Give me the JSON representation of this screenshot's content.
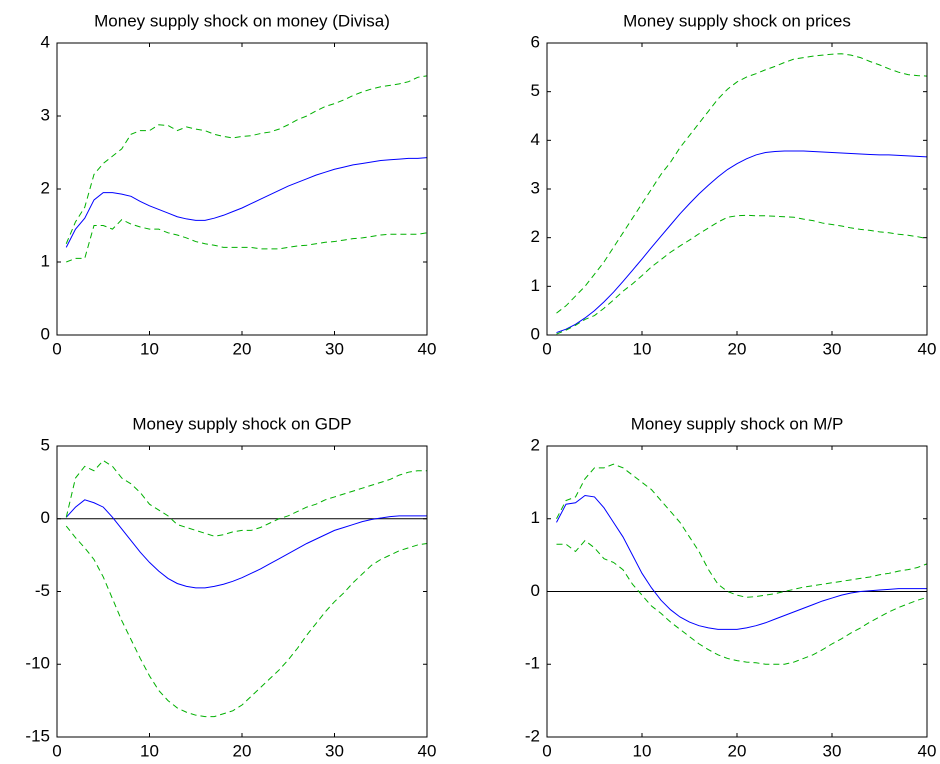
{
  "chart_data": [
    {
      "type": "line",
      "title": "Money supply shock on money (Divisa)",
      "x": [
        1,
        2,
        3,
        4,
        5,
        6,
        7,
        8,
        9,
        10,
        11,
        12,
        13,
        14,
        15,
        16,
        17,
        18,
        19,
        20,
        21,
        22,
        23,
        24,
        25,
        26,
        27,
        28,
        29,
        30,
        31,
        32,
        33,
        34,
        35,
        36,
        37,
        38,
        39,
        40
      ],
      "xlim": [
        0,
        40
      ],
      "xticks": [
        0,
        10,
        20,
        30,
        40
      ],
      "ylim": [
        0,
        4
      ],
      "yticks": [
        0,
        1,
        2,
        3,
        4
      ],
      "series": [
        {
          "color": "#0000ff",
          "dash": "solid",
          "values": [
            1.2,
            1.45,
            1.6,
            1.85,
            1.95,
            1.95,
            1.93,
            1.9,
            1.83,
            1.77,
            1.72,
            1.67,
            1.62,
            1.59,
            1.57,
            1.57,
            1.6,
            1.64,
            1.69,
            1.74,
            1.8,
            1.86,
            1.92,
            1.98,
            2.04,
            2.09,
            2.14,
            2.19,
            2.23,
            2.27,
            2.3,
            2.33,
            2.35,
            2.37,
            2.39,
            2.4,
            2.41,
            2.42,
            2.42,
            2.43
          ]
        },
        {
          "color": "#00b000",
          "dash": "dashed",
          "values": [
            1.25,
            1.55,
            1.75,
            2.2,
            2.35,
            2.45,
            2.55,
            2.75,
            2.8,
            2.8,
            2.88,
            2.87,
            2.8,
            2.85,
            2.82,
            2.8,
            2.75,
            2.72,
            2.7,
            2.72,
            2.73,
            2.76,
            2.78,
            2.82,
            2.88,
            2.95,
            3.0,
            3.07,
            3.13,
            3.17,
            3.22,
            3.28,
            3.33,
            3.37,
            3.4,
            3.42,
            3.44,
            3.47,
            3.53,
            3.55
          ]
        },
        {
          "color": "#00b000",
          "dash": "dashed",
          "values": [
            1.0,
            1.05,
            1.05,
            1.5,
            1.5,
            1.45,
            1.58,
            1.52,
            1.48,
            1.45,
            1.45,
            1.4,
            1.37,
            1.33,
            1.28,
            1.25,
            1.23,
            1.2,
            1.2,
            1.2,
            1.2,
            1.18,
            1.18,
            1.18,
            1.2,
            1.22,
            1.23,
            1.25,
            1.27,
            1.28,
            1.3,
            1.32,
            1.33,
            1.35,
            1.37,
            1.38,
            1.38,
            1.38,
            1.38,
            1.4
          ]
        }
      ]
    },
    {
      "type": "line",
      "title": "Money supply shock on prices",
      "x": [
        1,
        2,
        3,
        4,
        5,
        6,
        7,
        8,
        9,
        10,
        11,
        12,
        13,
        14,
        15,
        16,
        17,
        18,
        19,
        20,
        21,
        22,
        23,
        24,
        25,
        26,
        27,
        28,
        29,
        30,
        31,
        32,
        33,
        34,
        35,
        36,
        37,
        38,
        39,
        40
      ],
      "xlim": [
        0,
        40
      ],
      "xticks": [
        0,
        10,
        20,
        30,
        40
      ],
      "ylim": [
        0,
        6
      ],
      "yticks": [
        0,
        1,
        2,
        3,
        4,
        5,
        6
      ],
      "series": [
        {
          "color": "#0000ff",
          "dash": "solid",
          "values": [
            0.05,
            0.12,
            0.22,
            0.35,
            0.5,
            0.68,
            0.88,
            1.1,
            1.33,
            1.56,
            1.8,
            2.03,
            2.26,
            2.49,
            2.7,
            2.9,
            3.08,
            3.25,
            3.4,
            3.52,
            3.62,
            3.7,
            3.75,
            3.77,
            3.78,
            3.78,
            3.78,
            3.77,
            3.76,
            3.75,
            3.74,
            3.73,
            3.72,
            3.71,
            3.7,
            3.7,
            3.69,
            3.68,
            3.67,
            3.66
          ]
        },
        {
          "color": "#00b000",
          "dash": "dashed",
          "values": [
            0.45,
            0.6,
            0.8,
            1.0,
            1.25,
            1.5,
            1.8,
            2.1,
            2.4,
            2.7,
            3.0,
            3.3,
            3.55,
            3.85,
            4.1,
            4.35,
            4.6,
            4.85,
            5.05,
            5.2,
            5.3,
            5.37,
            5.45,
            5.52,
            5.6,
            5.67,
            5.7,
            5.73,
            5.75,
            5.77,
            5.78,
            5.75,
            5.7,
            5.62,
            5.55,
            5.47,
            5.4,
            5.35,
            5.33,
            5.32
          ]
        },
        {
          "color": "#00b000",
          "dash": "dashed",
          "values": [
            0.02,
            0.1,
            0.2,
            0.32,
            0.4,
            0.55,
            0.72,
            0.9,
            1.05,
            1.22,
            1.4,
            1.55,
            1.7,
            1.83,
            1.95,
            2.08,
            2.2,
            2.32,
            2.42,
            2.45,
            2.46,
            2.45,
            2.45,
            2.44,
            2.43,
            2.42,
            2.38,
            2.35,
            2.3,
            2.27,
            2.24,
            2.2,
            2.17,
            2.15,
            2.12,
            2.1,
            2.07,
            2.05,
            2.02,
            1.98
          ]
        }
      ]
    },
    {
      "type": "line",
      "title": "Money supply shock on GDP",
      "x": [
        1,
        2,
        3,
        4,
        5,
        6,
        7,
        8,
        9,
        10,
        11,
        12,
        13,
        14,
        15,
        16,
        17,
        18,
        19,
        20,
        21,
        22,
        23,
        24,
        25,
        26,
        27,
        28,
        29,
        30,
        31,
        32,
        33,
        34,
        35,
        36,
        37,
        38,
        39,
        40
      ],
      "xlim": [
        0,
        40
      ],
      "xticks": [
        0,
        10,
        20,
        30,
        40
      ],
      "ylim": [
        -15,
        5
      ],
      "yticks": [
        -15,
        -10,
        -5,
        0,
        5
      ],
      "hline": 0,
      "series": [
        {
          "color": "#0000ff",
          "dash": "solid",
          "values": [
            0.1,
            0.8,
            1.3,
            1.1,
            0.8,
            0.1,
            -0.7,
            -1.5,
            -2.3,
            -3.0,
            -3.6,
            -4.1,
            -4.45,
            -4.65,
            -4.75,
            -4.75,
            -4.65,
            -4.5,
            -4.3,
            -4.05,
            -3.75,
            -3.45,
            -3.1,
            -2.75,
            -2.4,
            -2.05,
            -1.7,
            -1.4,
            -1.1,
            -0.8,
            -0.6,
            -0.4,
            -0.2,
            -0.05,
            0.05,
            0.15,
            0.2,
            0.2,
            0.2,
            0.2
          ]
        },
        {
          "color": "#00b000",
          "dash": "dashed",
          "values": [
            0.1,
            2.8,
            3.6,
            3.3,
            4.0,
            3.6,
            2.8,
            2.4,
            1.8,
            1.0,
            0.6,
            0.2,
            -0.4,
            -0.6,
            -0.8,
            -1.0,
            -1.2,
            -1.1,
            -0.9,
            -0.8,
            -0.8,
            -0.6,
            -0.3,
            0.0,
            0.2,
            0.5,
            0.8,
            1.0,
            1.3,
            1.5,
            1.7,
            1.9,
            2.1,
            2.3,
            2.5,
            2.7,
            3.0,
            3.2,
            3.3,
            3.3
          ]
        },
        {
          "color": "#00b000",
          "dash": "dashed",
          "values": [
            -0.5,
            -1.3,
            -2.0,
            -2.8,
            -4.0,
            -5.5,
            -7.0,
            -8.3,
            -9.6,
            -10.8,
            -11.8,
            -12.5,
            -13.0,
            -13.3,
            -13.5,
            -13.6,
            -13.6,
            -13.4,
            -13.2,
            -12.8,
            -12.2,
            -11.6,
            -11.0,
            -10.4,
            -9.7,
            -8.9,
            -8.0,
            -7.2,
            -6.4,
            -5.7,
            -5.1,
            -4.4,
            -3.8,
            -3.2,
            -2.8,
            -2.5,
            -2.2,
            -2.0,
            -1.8,
            -1.7
          ]
        }
      ]
    },
    {
      "type": "line",
      "title": "Money supply shock on M/P",
      "x": [
        1,
        2,
        3,
        4,
        5,
        6,
        7,
        8,
        9,
        10,
        11,
        12,
        13,
        14,
        15,
        16,
        17,
        18,
        19,
        20,
        21,
        22,
        23,
        24,
        25,
        26,
        27,
        28,
        29,
        30,
        31,
        32,
        33,
        34,
        35,
        36,
        37,
        38,
        39,
        40
      ],
      "xlim": [
        0,
        40
      ],
      "xticks": [
        0,
        10,
        20,
        30,
        40
      ],
      "ylim": [
        -2,
        2
      ],
      "yticks": [
        -2,
        -1,
        0,
        1,
        2
      ],
      "hline": 0,
      "series": [
        {
          "color": "#0000ff",
          "dash": "solid",
          "values": [
            0.95,
            1.2,
            1.22,
            1.32,
            1.3,
            1.15,
            0.95,
            0.75,
            0.5,
            0.25,
            0.05,
            -0.12,
            -0.25,
            -0.35,
            -0.42,
            -0.47,
            -0.5,
            -0.52,
            -0.52,
            -0.52,
            -0.5,
            -0.47,
            -0.43,
            -0.38,
            -0.33,
            -0.28,
            -0.23,
            -0.18,
            -0.13,
            -0.09,
            -0.05,
            -0.02,
            0.0,
            0.01,
            0.02,
            0.03,
            0.04,
            0.04,
            0.04,
            0.04
          ]
        },
        {
          "color": "#00b000",
          "dash": "dashed",
          "values": [
            1.0,
            1.25,
            1.3,
            1.55,
            1.7,
            1.7,
            1.75,
            1.7,
            1.6,
            1.5,
            1.4,
            1.25,
            1.1,
            0.95,
            0.75,
            0.55,
            0.3,
            0.1,
            0.0,
            -0.05,
            -0.08,
            -0.07,
            -0.05,
            -0.03,
            0.0,
            0.03,
            0.06,
            0.08,
            0.1,
            0.12,
            0.14,
            0.16,
            0.18,
            0.2,
            0.23,
            0.25,
            0.28,
            0.3,
            0.33,
            0.38
          ]
        },
        {
          "color": "#00b000",
          "dash": "dashed",
          "values": [
            0.65,
            0.65,
            0.55,
            0.7,
            0.6,
            0.45,
            0.4,
            0.3,
            0.1,
            -0.05,
            -0.2,
            -0.3,
            -0.42,
            -0.52,
            -0.62,
            -0.72,
            -0.8,
            -0.87,
            -0.92,
            -0.95,
            -0.97,
            -0.98,
            -1.0,
            -1.0,
            -1.0,
            -0.97,
            -0.92,
            -0.87,
            -0.8,
            -0.72,
            -0.65,
            -0.57,
            -0.5,
            -0.42,
            -0.35,
            -0.28,
            -0.22,
            -0.17,
            -0.12,
            -0.08
          ]
        }
      ]
    }
  ]
}
